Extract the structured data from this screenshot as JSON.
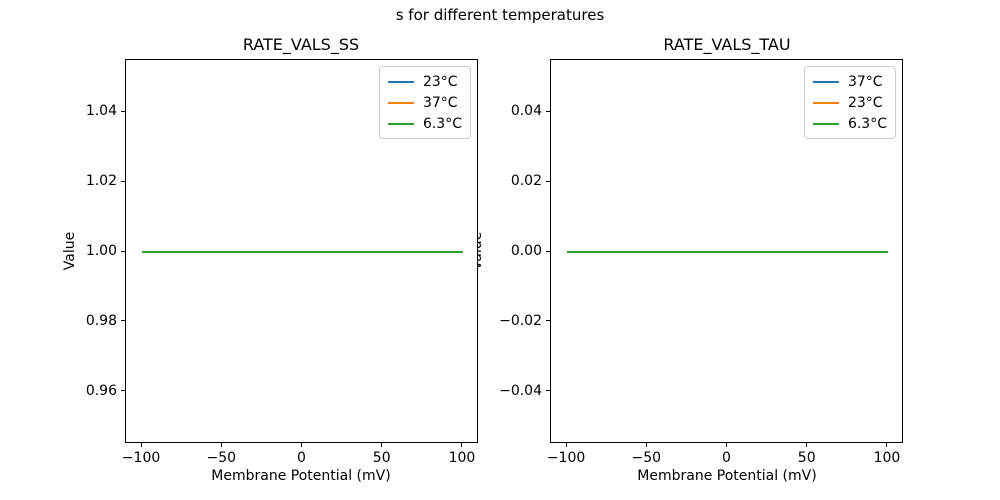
{
  "figure": {
    "suptitle": "s for different temperatures",
    "background": "#ffffff"
  },
  "chart_data": [
    {
      "type": "line",
      "title": "RATE_VALS_SS",
      "xlabel": "Membrane Potential (mV)",
      "ylabel": "Value",
      "xlim": [
        -110,
        110
      ],
      "ylim": [
        0.945,
        1.055
      ],
      "grid": false,
      "legend_position": "upper right",
      "xticks": [
        {
          "v": -100,
          "label": "−100"
        },
        {
          "v": -50,
          "label": "−50"
        },
        {
          "v": 0,
          "label": "0"
        },
        {
          "v": 50,
          "label": "50"
        },
        {
          "v": 100,
          "label": "100"
        }
      ],
      "yticks": [
        {
          "v": 0.96,
          "label": "0.96"
        },
        {
          "v": 0.98,
          "label": "0.98"
        },
        {
          "v": 1.0,
          "label": "1.00"
        },
        {
          "v": 1.02,
          "label": "1.02"
        },
        {
          "v": 1.04,
          "label": "1.04"
        }
      ],
      "legend": [
        {
          "label": "23°C",
          "color": "#1f77b4"
        },
        {
          "label": "37°C",
          "color": "#ff7f0e"
        },
        {
          "label": "6.3°C",
          "color": "#2ca02c"
        }
      ],
      "series": [
        {
          "name": "23°C",
          "color": "#1f77b4",
          "x": [
            -100,
            100
          ],
          "y": [
            1.0,
            1.0
          ]
        },
        {
          "name": "37°C",
          "color": "#ff7f0e",
          "x": [
            -100,
            100
          ],
          "y": [
            1.0,
            1.0
          ]
        },
        {
          "name": "6.3°C",
          "color": "#2ca02c",
          "x": [
            -100,
            100
          ],
          "y": [
            1.0,
            1.0
          ]
        }
      ]
    },
    {
      "type": "line",
      "title": "RATE_VALS_TAU",
      "xlabel": "Membrane Potential (mV)",
      "ylabel": "Value",
      "xlim": [
        -110,
        110
      ],
      "ylim": [
        -0.055,
        0.055
      ],
      "grid": false,
      "legend_position": "upper right",
      "xticks": [
        {
          "v": -100,
          "label": "−100"
        },
        {
          "v": -50,
          "label": "−50"
        },
        {
          "v": 0,
          "label": "0"
        },
        {
          "v": 50,
          "label": "50"
        },
        {
          "v": 100,
          "label": "100"
        }
      ],
      "yticks": [
        {
          "v": -0.04,
          "label": "−0.04"
        },
        {
          "v": -0.02,
          "label": "−0.02"
        },
        {
          "v": 0.0,
          "label": "0.00"
        },
        {
          "v": 0.02,
          "label": "0.02"
        },
        {
          "v": 0.04,
          "label": "0.04"
        }
      ],
      "legend": [
        {
          "label": "37°C",
          "color": "#1f77b4"
        },
        {
          "label": "23°C",
          "color": "#ff7f0e"
        },
        {
          "label": "6.3°C",
          "color": "#2ca02c"
        }
      ],
      "series": [
        {
          "name": "37°C",
          "color": "#1f77b4",
          "x": [
            -100,
            100
          ],
          "y": [
            0.0,
            0.0
          ]
        },
        {
          "name": "23°C",
          "color": "#ff7f0e",
          "x": [
            -100,
            100
          ],
          "y": [
            0.0,
            0.0
          ]
        },
        {
          "name": "6.3°C",
          "color": "#2ca02c",
          "x": [
            -100,
            100
          ],
          "y": [
            0.0,
            0.0
          ]
        }
      ]
    }
  ]
}
